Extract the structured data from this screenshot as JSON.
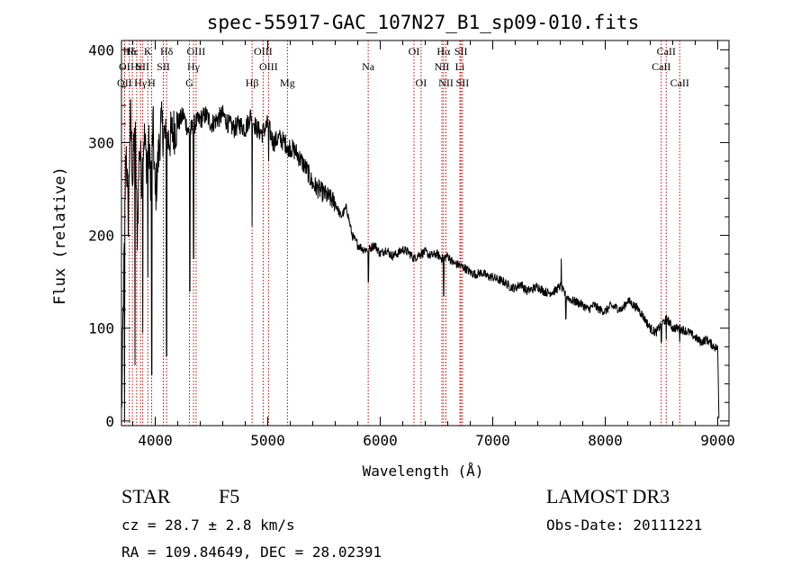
{
  "chart_data": {
    "type": "line",
    "title": "spec-55917-GAC_107N27_B1_sp09-010.fits",
    "xlabel": "Wavelength (Å)",
    "ylabel": "Flux (relative)",
    "xlim": [
      3700,
      9100
    ],
    "ylim": [
      -5,
      410
    ],
    "xticks": [
      4000,
      5000,
      6000,
      7000,
      8000,
      9000
    ],
    "xtick_labels": [
      "4000",
      "5000",
      "6000",
      "7000",
      "8000",
      "9000"
    ],
    "yticks": [
      0,
      100,
      200,
      300,
      400
    ],
    "ytick_labels": [
      "0",
      "100",
      "200",
      "300",
      "400"
    ],
    "series": [
      {
        "name": "spectrum",
        "x": [
          3700,
          3720,
          3740,
          3760,
          3780,
          3800,
          3820,
          3840,
          3860,
          3880,
          3900,
          3920,
          3940,
          3960,
          3980,
          4000,
          4050,
          4100,
          4150,
          4200,
          4250,
          4300,
          4350,
          4400,
          4450,
          4500,
          4550,
          4600,
          4650,
          4700,
          4750,
          4800,
          4850,
          4900,
          4950,
          5000,
          5050,
          5100,
          5150,
          5200,
          5250,
          5300,
          5350,
          5400,
          5450,
          5500,
          5550,
          5600,
          5650,
          5700,
          5750,
          5800,
          5850,
          5900,
          5950,
          6000,
          6050,
          6100,
          6150,
          6200,
          6250,
          6300,
          6350,
          6400,
          6450,
          6500,
          6550,
          6600,
          6650,
          6700,
          6750,
          6800,
          6850,
          6900,
          6950,
          7000,
          7050,
          7100,
          7150,
          7200,
          7250,
          7300,
          7350,
          7400,
          7450,
          7500,
          7550,
          7600,
          7650,
          7700,
          7750,
          7800,
          7850,
          7900,
          7950,
          8000,
          8050,
          8100,
          8150,
          8200,
          8250,
          8300,
          8350,
          8400,
          8450,
          8500,
          8550,
          8600,
          8650,
          8700,
          8750,
          8800,
          8850,
          8900,
          8950,
          9000,
          9010
        ],
        "values": [
          5,
          150,
          300,
          220,
          330,
          260,
          320,
          200,
          300,
          260,
          310,
          280,
          300,
          260,
          320,
          240,
          320,
          300,
          310,
          320,
          330,
          310,
          320,
          325,
          330,
          320,
          325,
          330,
          320,
          315,
          320,
          315,
          330,
          315,
          310,
          320,
          300,
          305,
          300,
          295,
          290,
          280,
          270,
          255,
          250,
          245,
          240,
          235,
          220,
          230,
          200,
          190,
          185,
          185,
          190,
          180,
          185,
          178,
          180,
          185,
          182,
          175,
          180,
          182,
          178,
          180,
          175,
          178,
          170,
          168,
          165,
          160,
          158,
          160,
          156,
          155,
          152,
          150,
          145,
          143,
          148,
          140,
          142,
          145,
          140,
          138,
          140,
          145,
          135,
          130,
          128,
          125,
          120,
          125,
          120,
          118,
          124,
          122,
          120,
          130,
          125,
          120,
          110,
          100,
          95,
          105,
          110,
          100,
          100,
          98,
          95,
          90,
          85,
          88,
          82,
          78,
          5
        ],
        "features": [
          {
            "x": 3727,
            "value": 0
          },
          {
            "x": 3820,
            "value": 60
          },
          {
            "x": 3889,
            "value": 95
          },
          {
            "x": 3934,
            "value": 155
          },
          {
            "x": 3968,
            "value": 50
          },
          {
            "x": 4101,
            "value": 70
          },
          {
            "x": 4308,
            "value": 140
          },
          {
            "x": 4340,
            "value": 175
          },
          {
            "x": 4861,
            "value": 210
          },
          {
            "x": 5008,
            "value": 280
          },
          {
            "x": 5183,
            "value": 285
          },
          {
            "x": 5895,
            "value": 150
          },
          {
            "x": 6563,
            "value": 135
          },
          {
            "x": 7609,
            "value": 175
          },
          {
            "x": 7650,
            "value": 110
          },
          {
            "x": 8498,
            "value": 85
          },
          {
            "x": 8542,
            "value": 88
          },
          {
            "x": 8662,
            "value": 85
          }
        ]
      }
    ],
    "lines": [
      {
        "label": "Hδ",
        "x": 3770,
        "row": 0
      },
      {
        "label": "OI",
        "x": 3727,
        "row": 1
      },
      {
        "label": "OII",
        "x": 3727,
        "row": 2
      },
      {
        "label": "Hε",
        "x": 3797,
        "row": 0
      },
      {
        "label": "Hε",
        "x": 3835,
        "row": 1
      },
      {
        "label": "Hγ",
        "x": 3869,
        "row": 2
      },
      {
        "label": "K",
        "x": 3934,
        "row": 0
      },
      {
        "label": "SII",
        "x": 3889,
        "row": 1
      },
      {
        "label": "H",
        "x": 3968,
        "row": 2
      },
      {
        "label": "Hδ",
        "x": 4101,
        "row": 0
      },
      {
        "label": "SII",
        "x": 4072,
        "row": 1
      },
      {
        "label": "OIII",
        "x": 4363,
        "row": 0
      },
      {
        "label": "Hγ",
        "x": 4340,
        "row": 1
      },
      {
        "label": "G",
        "x": 4304,
        "row": 2
      },
      {
        "label": "OIII",
        "x": 4959,
        "row": 0
      },
      {
        "label": "OIII",
        "x": 5007,
        "row": 1
      },
      {
        "label": "Hβ",
        "x": 4861,
        "row": 2
      },
      {
        "label": "Mg",
        "x": 5175,
        "row": 2
      },
      {
        "label": "Na",
        "x": 5893,
        "row": 1
      },
      {
        "label": "OI",
        "x": 6300,
        "row": 0
      },
      {
        "label": "OI",
        "x": 6363,
        "row": 2
      },
      {
        "label": "Hα",
        "x": 6563,
        "row": 0
      },
      {
        "label": "SII",
        "x": 6717,
        "row": 0
      },
      {
        "label": "NII",
        "x": 6548,
        "row": 1
      },
      {
        "label": "Li",
        "x": 6708,
        "row": 1
      },
      {
        "label": "NII",
        "x": 6584,
        "row": 2
      },
      {
        "label": "SII",
        "x": 6731,
        "row": 2
      },
      {
        "label": "CaII",
        "x": 8542,
        "row": 0
      },
      {
        "label": "CaII",
        "x": 8498,
        "row": 1
      },
      {
        "label": "CaII",
        "x": 8662,
        "row": 2
      }
    ]
  },
  "info": {
    "object_class": "STAR",
    "subclass": "F5",
    "survey": "LAMOST DR3",
    "redshift": "cz = 28.7 ± 2.8 km/s",
    "obs_date": "Obs-Date: 20111221",
    "coords": "RA = 109.84649, DEC =  28.02391"
  }
}
